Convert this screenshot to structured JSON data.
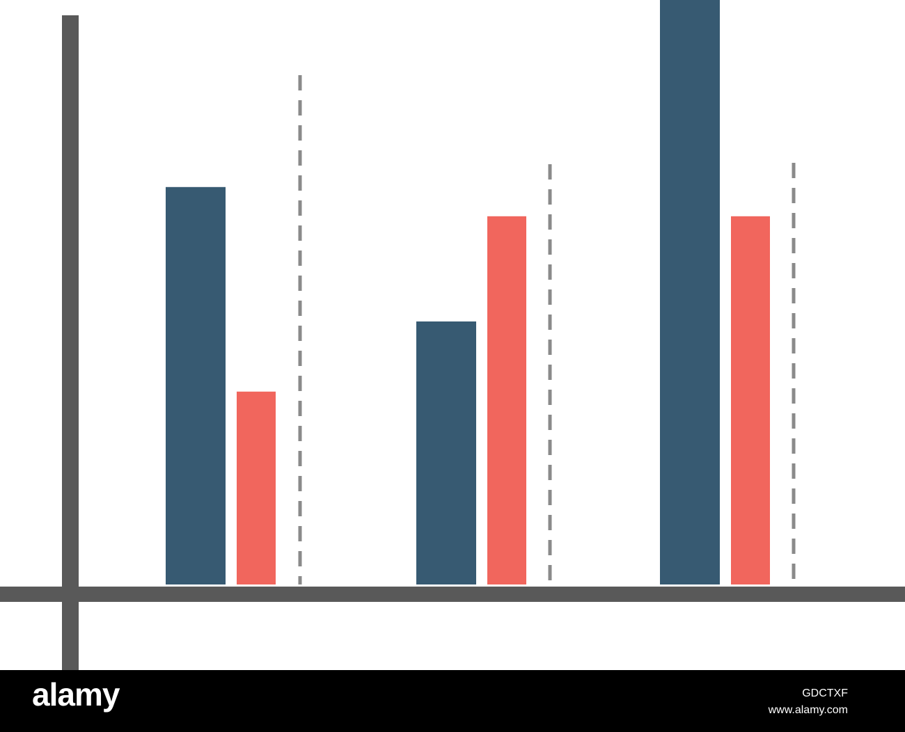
{
  "colors": {
    "axis": "#595959",
    "series_a": "#375a72",
    "series_b": "#f1665d",
    "divider": "#8a8a8a",
    "background": "#ffffff",
    "footer_bg": "#000000",
    "footer_text": "#ffffff"
  },
  "chart_data": {
    "type": "bar",
    "title": "",
    "xlabel": "",
    "ylabel": "",
    "categories": [
      "",
      "",
      ""
    ],
    "ylim": [
      0,
      100
    ],
    "grid": false,
    "legend": "none",
    "series": [
      {
        "values": [
          68,
          45,
          100
        ],
        "color": "#375a72"
      },
      {
        "values": [
          33,
          63,
          63
        ],
        "color": "#f1665d"
      }
    ],
    "dividers": "dashed vertical line after each category group"
  },
  "footer": {
    "logo": "alamy",
    "image_id": "GDCTXF",
    "url": "www.alamy.com"
  }
}
